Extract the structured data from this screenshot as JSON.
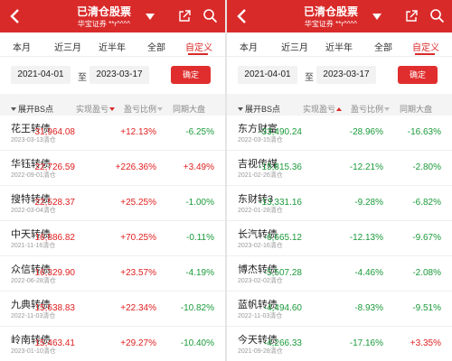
{
  "header": {
    "title": "已清仓股票",
    "subtitle": "华宝证券 **r^^^^"
  },
  "tabs": [
    "本月",
    "近三月",
    "近半年",
    "全部",
    "自定义"
  ],
  "active_tab": 4,
  "date_from": "2021-04-01",
  "date_sep": "至",
  "date_to": "2023-03-17",
  "confirm_label": "确定",
  "columns": {
    "bs": "展开BS点",
    "profit": "实现盈亏",
    "ratio": "盈亏比例",
    "market": "同期大盘"
  },
  "colors": {
    "brand": "#d92a2a",
    "up": "#e02020",
    "down": "#1a9a3a"
  },
  "left": [
    {
      "name": "花王转债",
      "date": "2023-03-13清仓",
      "profit": "31,964.08",
      "ratio": "+12.13%",
      "market": "-6.25%",
      "profit_up": true,
      "ratio_up": true,
      "market_up": false
    },
    {
      "name": "华钰转债",
      "date": "2022-09-01清仓",
      "profit": "22,726.59",
      "ratio": "+226.36%",
      "market": "+3.49%",
      "profit_up": true,
      "ratio_up": true,
      "market_up": true
    },
    {
      "name": "搜特转债",
      "date": "2022-03-04清仓",
      "profit": "22,528.37",
      "ratio": "+25.25%",
      "market": "-1.00%",
      "profit_up": true,
      "ratio_up": true,
      "market_up": false
    },
    {
      "name": "中天转债",
      "date": "2021-11-16清仓",
      "profit": "16,886.82",
      "ratio": "+70.25%",
      "market": "-0.11%",
      "profit_up": true,
      "ratio_up": true,
      "market_up": false
    },
    {
      "name": "众信转债",
      "date": "2022-06-28清仓",
      "profit": "16,329.90",
      "ratio": "+23.57%",
      "market": "-4.19%",
      "profit_up": true,
      "ratio_up": true,
      "market_up": false
    },
    {
      "name": "九典转债",
      "date": "2022-11-03清仓",
      "profit": "15,638.83",
      "ratio": "+22.34%",
      "market": "-10.82%",
      "profit_up": true,
      "ratio_up": true,
      "market_up": false
    },
    {
      "name": "岭南转债",
      "date": "2023-01-10清仓",
      "profit": "15,463.41",
      "ratio": "+29.27%",
      "market": "-10.40%",
      "profit_up": true,
      "ratio_up": true,
      "market_up": false
    }
  ],
  "right": [
    {
      "name": "东方财富",
      "date": "2022-03-15清仓",
      "profit": "-33,490.24",
      "ratio": "-28.96%",
      "market": "-16.63%",
      "profit_up": false,
      "ratio_up": false,
      "market_up": false
    },
    {
      "name": "吉视传媒",
      "date": "2021-02-26清仓",
      "profit": "-15,815.36",
      "ratio": "-12.21%",
      "market": "-2.80%",
      "profit_up": false,
      "ratio_up": false,
      "market_up": false
    },
    {
      "name": "东财转3",
      "date": "2022-01-28清仓",
      "profit": "-13,331.16",
      "ratio": "-9.28%",
      "market": "-6.82%",
      "profit_up": false,
      "ratio_up": false,
      "market_up": false
    },
    {
      "name": "长汽转债",
      "date": "2023-02-16清仓",
      "profit": "-6,665.12",
      "ratio": "-12.13%",
      "market": "-9.67%",
      "profit_up": false,
      "ratio_up": false,
      "market_up": false
    },
    {
      "name": "博杰转债",
      "date": "2023-02-02清仓",
      "profit": "-5,507.28",
      "ratio": "-4.46%",
      "market": "-2.08%",
      "profit_up": false,
      "ratio_up": false,
      "market_up": false
    },
    {
      "name": "蓝帆转债",
      "date": "2022-11-03清仓",
      "profit": "-4,494.60",
      "ratio": "-8.93%",
      "market": "-9.51%",
      "profit_up": false,
      "ratio_up": false,
      "market_up": false
    },
    {
      "name": "今天转债",
      "date": "2021-09-28清仓",
      "profit": "-4,266.33",
      "ratio": "-17.16%",
      "market": "+3.35%",
      "profit_up": false,
      "ratio_up": false,
      "market_up": true
    }
  ]
}
